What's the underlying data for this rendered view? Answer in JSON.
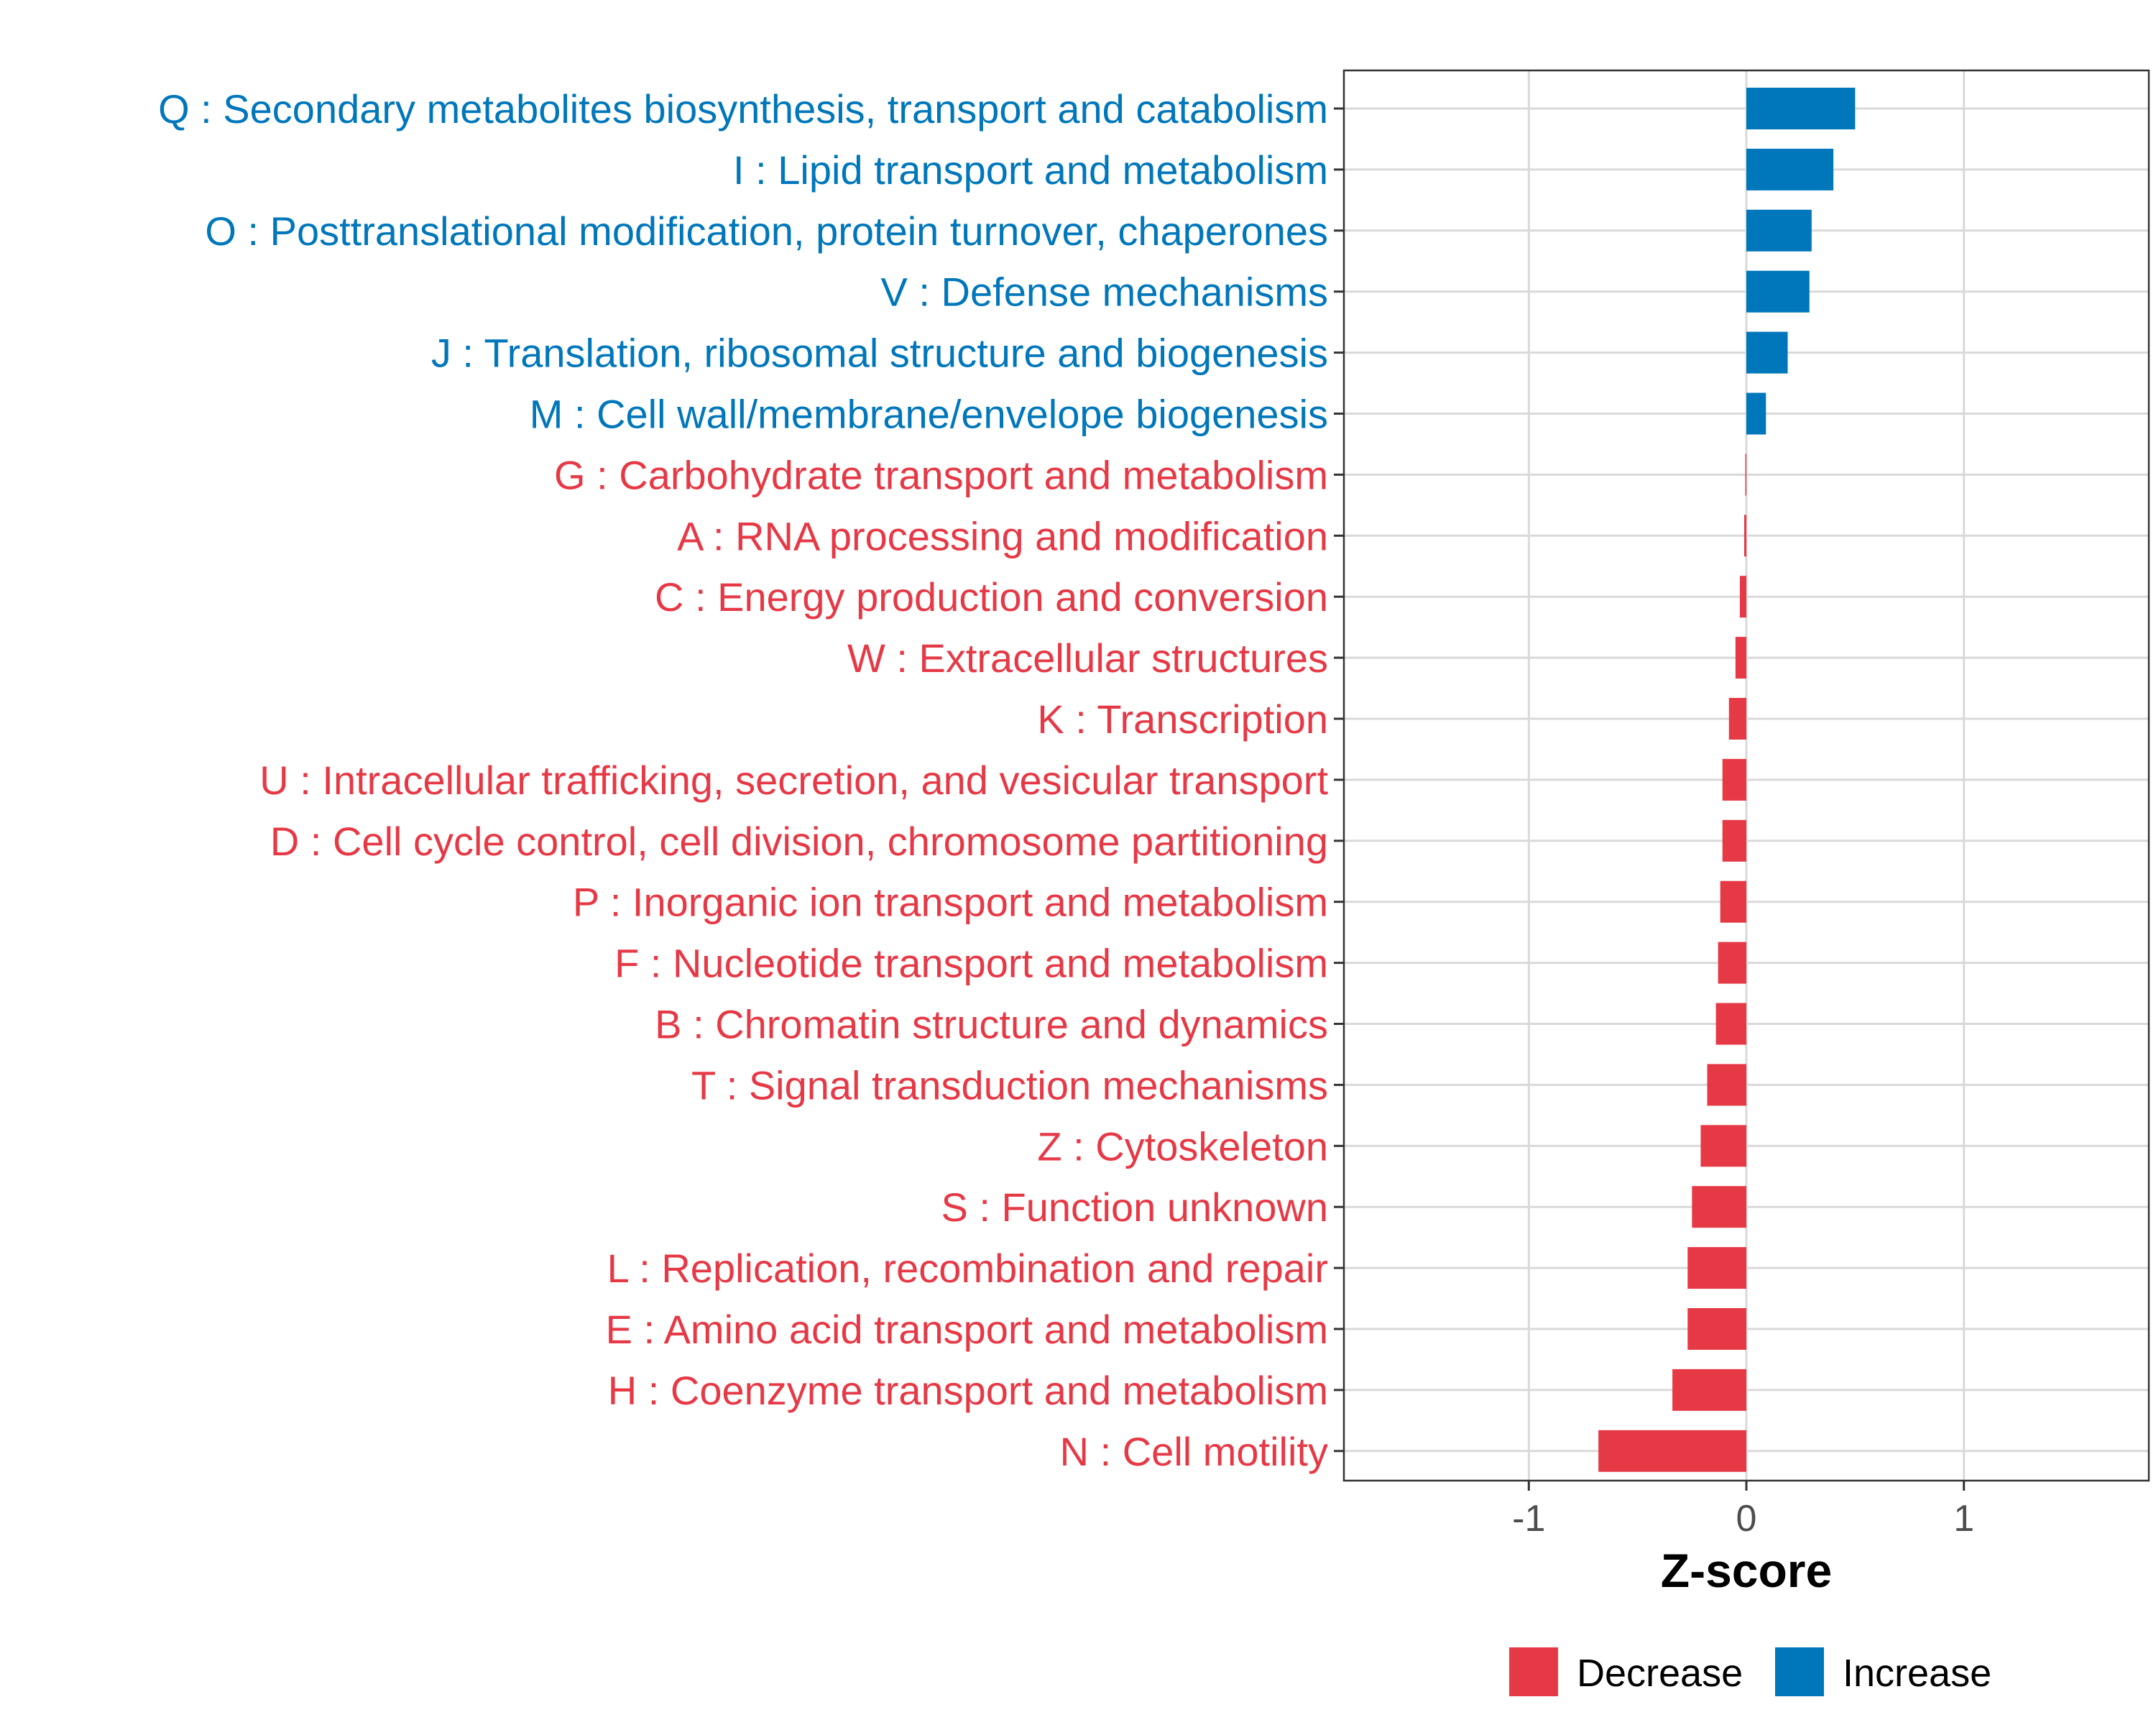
{
  "colors": {
    "increase": "#0077BB",
    "decrease": "#E63946",
    "grid": "#d9d9d9",
    "axis": "#333333"
  },
  "chart_data": {
    "type": "bar",
    "orientation": "horizontal",
    "title": "",
    "xlabel": "Z-score",
    "ylabel": "",
    "xlim": [
      -1.85,
      1.85
    ],
    "xticks": [
      -1,
      0,
      1
    ],
    "xtick_labels": [
      "-1",
      "0",
      "1"
    ],
    "grid": true,
    "legend_position": "bottom",
    "legend": [
      "Decrease",
      "Increase"
    ],
    "categories": [
      "Q : Secondary metabolites biosynthesis, transport and catabolism",
      "I : Lipid transport and metabolism",
      "O : Posttranslational modification, protein turnover, chaperones",
      "V : Defense mechanisms",
      "J : Translation, ribosomal structure and biogenesis",
      "M : Cell wall/membrane/envelope biogenesis",
      "G : Carbohydrate transport and metabolism",
      "A : RNA processing and modification",
      "C : Energy production and conversion",
      "W : Extracellular structures",
      "K : Transcription",
      "U : Intracellular trafficking, secretion, and vesicular transport",
      "D : Cell cycle control, cell division, chromosome partitioning",
      "P : Inorganic ion transport and metabolism",
      "F : Nucleotide transport and metabolism",
      "B : Chromatin structure and dynamics",
      "T : Signal transduction mechanisms",
      "Z : Cytoskeleton",
      "S : Function unknown",
      "L : Replication, recombination and repair",
      "E : Amino acid transport and metabolism",
      "H : Coenzyme transport and metabolism",
      "N : Cell motility"
    ],
    "values": [
      0.5,
      0.4,
      0.3,
      0.29,
      0.19,
      0.09,
      -0.005,
      -0.01,
      -0.03,
      -0.05,
      -0.08,
      -0.11,
      -0.11,
      -0.12,
      -0.13,
      -0.14,
      -0.18,
      -0.21,
      -0.25,
      -0.27,
      -0.27,
      -0.34,
      -0.68
    ],
    "groups": [
      "Increase",
      "Increase",
      "Increase",
      "Increase",
      "Increase",
      "Increase",
      "Decrease",
      "Decrease",
      "Decrease",
      "Decrease",
      "Decrease",
      "Decrease",
      "Decrease",
      "Decrease",
      "Decrease",
      "Decrease",
      "Decrease",
      "Decrease",
      "Decrease",
      "Decrease",
      "Decrease",
      "Decrease",
      "Decrease"
    ]
  }
}
